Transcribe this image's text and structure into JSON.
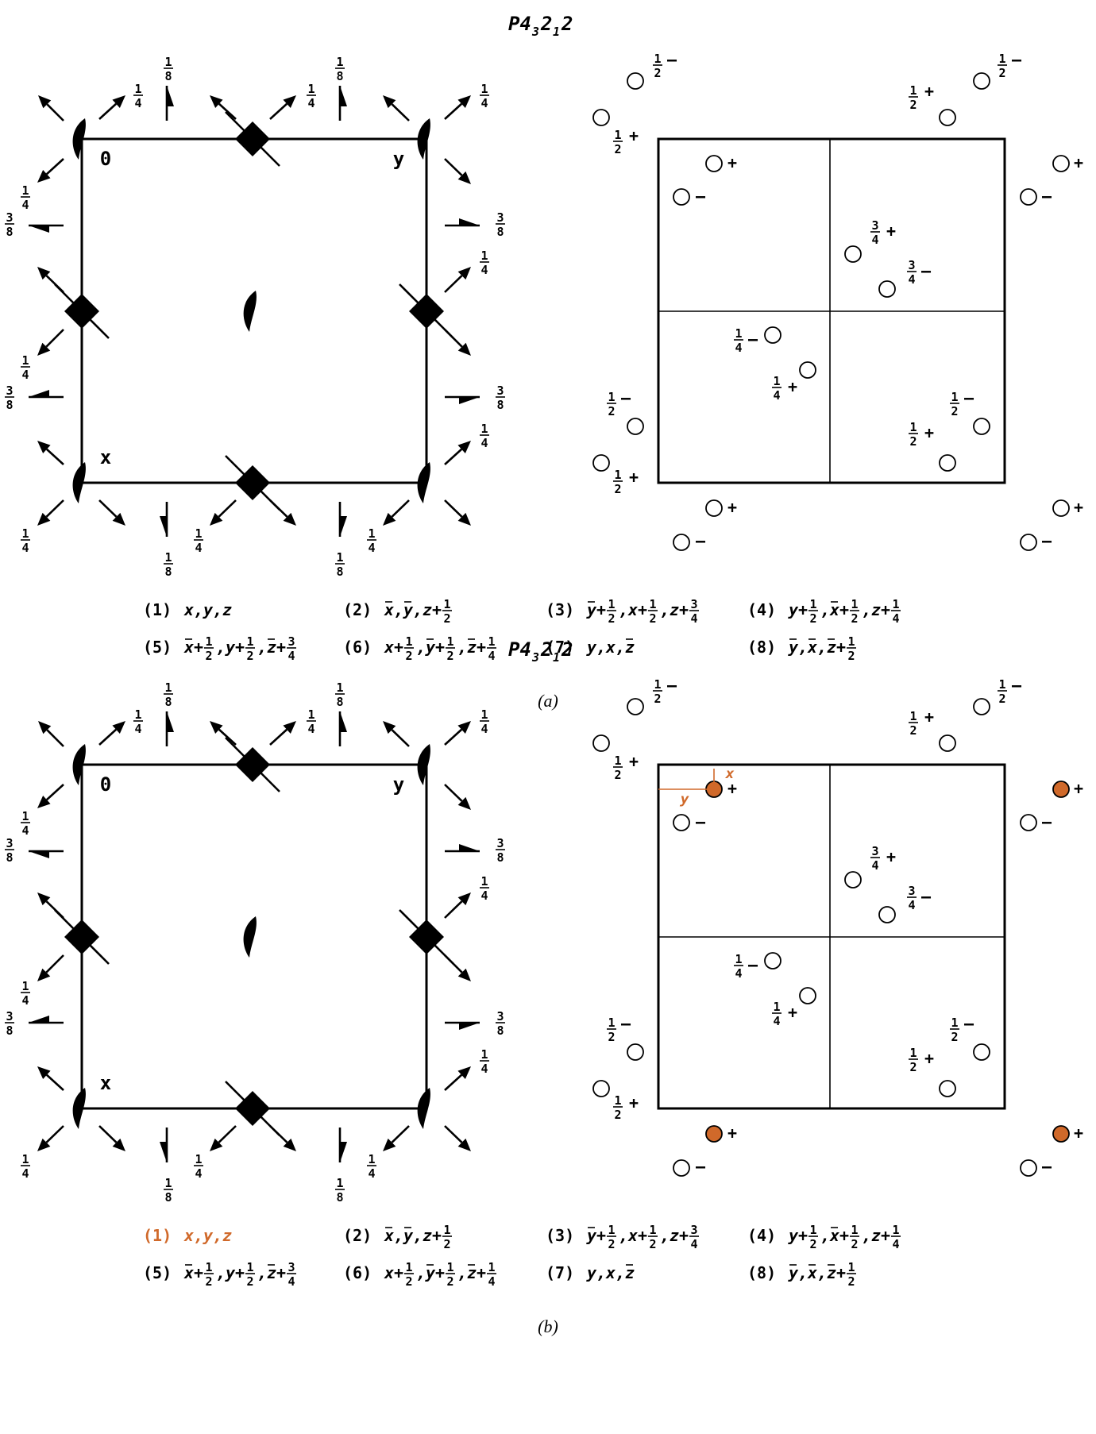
{
  "panels": [
    {
      "id": "a",
      "title": "P4₃ 2₁ 2",
      "title_parts": [
        "P4",
        "3",
        "2",
        "1",
        "2"
      ],
      "caption": "(a)",
      "axis_labels": {
        "origin": "0",
        "x": "x",
        "y": "y"
      },
      "highlight_first": false,
      "operations": [
        "(1)  x,y,z",
        "(2)  x̅,y̅,z+1/2",
        "(3)  y̅+1/2,x+1/2,z+3/4",
        "(4)  y+1/2,x̅+1/2,z+1/4",
        "(5)  x̅+1/2,y+1/2,z̅+3/4",
        "(6)  x+1/2,y̅+1/2,z̅+1/4",
        "(7)  y,x,z̅",
        "(8)  y̅,x̅,z̅+1/2"
      ]
    },
    {
      "id": "b",
      "title": "P4₃ 2₁ 2",
      "title_parts": [
        "P4",
        "3",
        "2",
        "1",
        "2"
      ],
      "caption": "(b)",
      "axis_labels": {
        "origin": "0",
        "x": "x",
        "y": "y"
      },
      "highlight_first": true,
      "local_axes": {
        "x": "x",
        "y": "y"
      },
      "operations": [
        "(1)  x,y,z",
        "(2)  x̅,y̅,z+1/2",
        "(3)  y̅+1/2,x+1/2,z+3/4",
        "(4)  y+1/2,x̅+1/2,z+1/4",
        "(5)  x̅+1/2,y+1/2,z̅+3/4",
        "(6)  x+1/2,y̅+1/2,z̅+1/4",
        "(7)  y,x,z̅",
        "(8)  y̅,x̅,z̅+1/2"
      ]
    }
  ],
  "symmetry_fractions": [
    "1/4",
    "1/8",
    "3/8"
  ],
  "position_heights": [
    "1/2",
    "3/4",
    "1/4",
    "+",
    "–"
  ],
  "colors": {
    "line": "#000000",
    "highlight": "#d0692a",
    "background": "#ffffff"
  }
}
